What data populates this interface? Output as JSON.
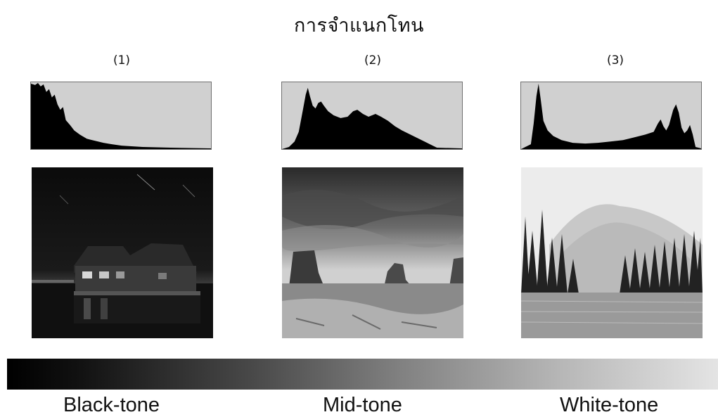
{
  "title": "การจำแนกโทน",
  "panels": [
    {
      "number": "(1)",
      "histogram_image": "black-tone-histogram",
      "photo_image": "night-boathouse-photo"
    },
    {
      "number": "(2)",
      "histogram_image": "mid-tone-histogram",
      "photo_image": "desert-buttes-photo"
    },
    {
      "number": "(3)",
      "histogram_image": "white-tone-histogram",
      "photo_image": "misty-lake-forest-photo"
    }
  ],
  "tone_scale": {
    "labels": [
      "Black-tone",
      "Mid-tone",
      "White-tone"
    ]
  }
}
